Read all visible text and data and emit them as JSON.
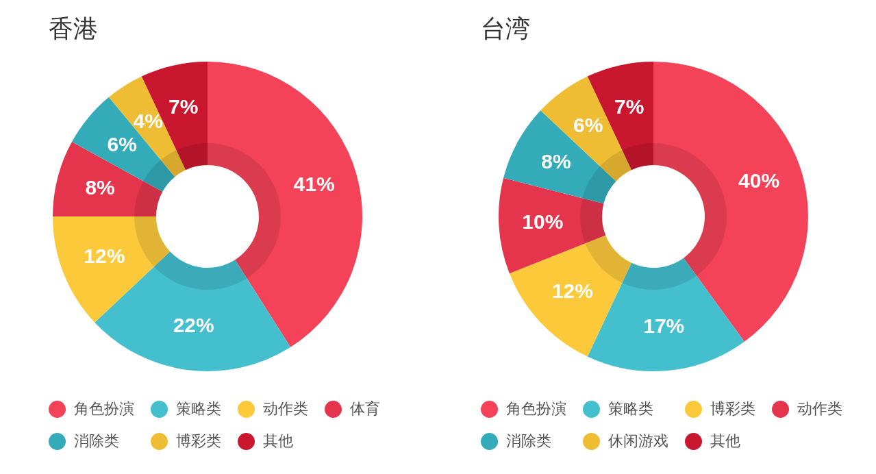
{
  "chart_data": [
    {
      "type": "donut",
      "title": "香港",
      "categories": [
        "角色扮演",
        "策略类",
        "动作类",
        "体育",
        "消除类",
        "博彩类",
        "其他"
      ],
      "values": [
        41,
        22,
        12,
        8,
        6,
        4,
        7
      ],
      "colors": [
        "#f44258",
        "#43bfce",
        "#fcc93b",
        "#e5354d",
        "#33abb9",
        "#efbd34",
        "#c8172e"
      ],
      "value_labels": [
        "41%",
        "22%",
        "12%",
        "8%",
        "6%",
        "4%",
        "7%"
      ],
      "legend": "bottom"
    },
    {
      "type": "donut",
      "title": "台湾",
      "categories": [
        "角色扮演",
        "策略类",
        "博彩类",
        "动作类",
        "消除类",
        "休闲游戏",
        "其他"
      ],
      "values": [
        40,
        17,
        12,
        10,
        8,
        6,
        7
      ],
      "colors": [
        "#f44258",
        "#43bfce",
        "#fcc93b",
        "#e5354d",
        "#33abb9",
        "#efbd34",
        "#c8172e"
      ],
      "value_labels": [
        "40%",
        "17%",
        "12%",
        "10%",
        "8%",
        "6%",
        "7%"
      ],
      "legend": "bottom"
    }
  ]
}
